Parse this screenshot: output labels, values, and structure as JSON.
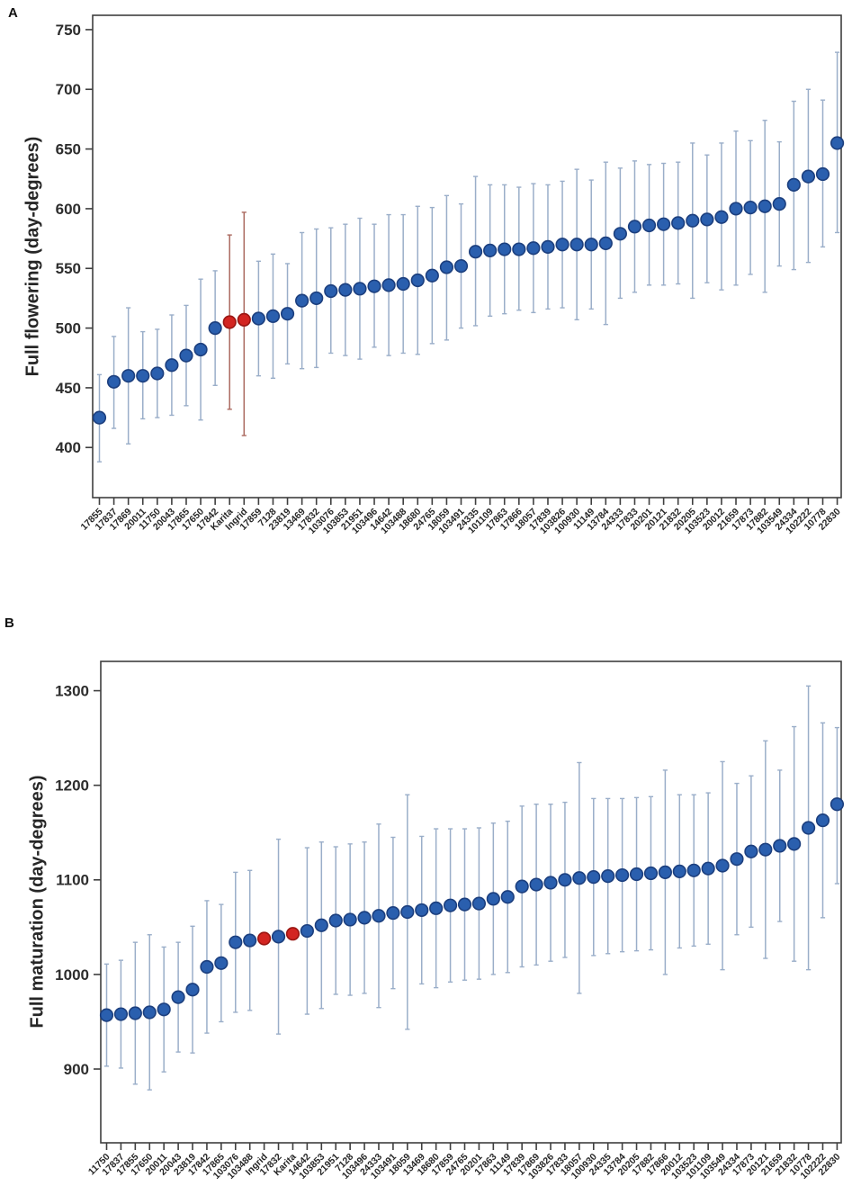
{
  "figure": {
    "panels": [
      {
        "letter": "A"
      },
      {
        "letter": "B"
      }
    ],
    "highlighted_labels": [
      "Karita",
      "Ingrid"
    ]
  },
  "colors": {
    "dot_blue": "#2a5fae",
    "dot_blue_edge": "#1c3f7e",
    "dot_red": "#d32521",
    "dot_red_edge": "#9a1612",
    "bar_blue": "#9aaec9",
    "bar_red": "#ab6a60",
    "axis": "#3f3f3f",
    "background": "#ffffff"
  },
  "chart_data": [
    {
      "type": "scatter",
      "panel": "A",
      "ylabel": "Full flowering (day-degrees)",
      "xlabel": "",
      "ylim": [
        358,
        762
      ],
      "yticks": [
        400,
        450,
        500,
        550,
        600,
        650,
        700,
        750
      ],
      "grid": false,
      "error_bars": true,
      "points": [
        {
          "label": "17855",
          "mean": 425,
          "lo": 388,
          "hi": 461,
          "highlight": false
        },
        {
          "label": "17837",
          "mean": 455,
          "lo": 416,
          "hi": 493,
          "highlight": false
        },
        {
          "label": "17869",
          "mean": 460,
          "lo": 403,
          "hi": 517,
          "highlight": false
        },
        {
          "label": "20011",
          "mean": 460,
          "lo": 424,
          "hi": 497,
          "highlight": false
        },
        {
          "label": "11750",
          "mean": 462,
          "lo": 425,
          "hi": 499,
          "highlight": false
        },
        {
          "label": "20043",
          "mean": 469,
          "lo": 427,
          "hi": 511,
          "highlight": false
        },
        {
          "label": "17865",
          "mean": 477,
          "lo": 435,
          "hi": 519,
          "highlight": false
        },
        {
          "label": "17650",
          "mean": 482,
          "lo": 423,
          "hi": 541,
          "highlight": false
        },
        {
          "label": "17842",
          "mean": 500,
          "lo": 452,
          "hi": 548,
          "highlight": false
        },
        {
          "label": "Karita",
          "mean": 505,
          "lo": 432,
          "hi": 578,
          "highlight": true
        },
        {
          "label": "Ingrid",
          "mean": 507,
          "lo": 410,
          "hi": 597,
          "highlight": true
        },
        {
          "label": "17859",
          "mean": 508,
          "lo": 460,
          "hi": 556,
          "highlight": false
        },
        {
          "label": "7128",
          "mean": 510,
          "lo": 458,
          "hi": 562,
          "highlight": false
        },
        {
          "label": "23819",
          "mean": 512,
          "lo": 470,
          "hi": 554,
          "highlight": false
        },
        {
          "label": "13469",
          "mean": 523,
          "lo": 466,
          "hi": 580,
          "highlight": false
        },
        {
          "label": "17832",
          "mean": 525,
          "lo": 467,
          "hi": 583,
          "highlight": false
        },
        {
          "label": "103076",
          "mean": 531,
          "lo": 479,
          "hi": 584,
          "highlight": false
        },
        {
          "label": "103853",
          "mean": 532,
          "lo": 477,
          "hi": 587,
          "highlight": false
        },
        {
          "label": "21951",
          "mean": 533,
          "lo": 474,
          "hi": 592,
          "highlight": false
        },
        {
          "label": "103496",
          "mean": 535,
          "lo": 484,
          "hi": 587,
          "highlight": false
        },
        {
          "label": "14642",
          "mean": 536,
          "lo": 477,
          "hi": 595,
          "highlight": false
        },
        {
          "label": "103488",
          "mean": 537,
          "lo": 479,
          "hi": 595,
          "highlight": false
        },
        {
          "label": "18680",
          "mean": 540,
          "lo": 478,
          "hi": 602,
          "highlight": false
        },
        {
          "label": "24765",
          "mean": 544,
          "lo": 487,
          "hi": 601,
          "highlight": false
        },
        {
          "label": "18059",
          "mean": 551,
          "lo": 490,
          "hi": 611,
          "highlight": false
        },
        {
          "label": "103491",
          "mean": 552,
          "lo": 500,
          "hi": 604,
          "highlight": false
        },
        {
          "label": "24335",
          "mean": 564,
          "lo": 502,
          "hi": 627,
          "highlight": false
        },
        {
          "label": "101109",
          "mean": 565,
          "lo": 510,
          "hi": 620,
          "highlight": false
        },
        {
          "label": "17863",
          "mean": 566,
          "lo": 512,
          "hi": 620,
          "highlight": false
        },
        {
          "label": "17866",
          "mean": 566,
          "lo": 515,
          "hi": 618,
          "highlight": false
        },
        {
          "label": "18057",
          "mean": 567,
          "lo": 513,
          "hi": 621,
          "highlight": false
        },
        {
          "label": "17839",
          "mean": 568,
          "lo": 516,
          "hi": 620,
          "highlight": false
        },
        {
          "label": "103826",
          "mean": 570,
          "lo": 517,
          "hi": 623,
          "highlight": false
        },
        {
          "label": "100930",
          "mean": 570,
          "lo": 507,
          "hi": 633,
          "highlight": false
        },
        {
          "label": "11149",
          "mean": 570,
          "lo": 516,
          "hi": 624,
          "highlight": false
        },
        {
          "label": "13784",
          "mean": 571,
          "lo": 503,
          "hi": 639,
          "highlight": false
        },
        {
          "label": "24333",
          "mean": 579,
          "lo": 525,
          "hi": 634,
          "highlight": false
        },
        {
          "label": "17833",
          "mean": 585,
          "lo": 530,
          "hi": 640,
          "highlight": false
        },
        {
          "label": "20201",
          "mean": 586,
          "lo": 536,
          "hi": 637,
          "highlight": false
        },
        {
          "label": "20121",
          "mean": 587,
          "lo": 536,
          "hi": 638,
          "highlight": false
        },
        {
          "label": "21832",
          "mean": 588,
          "lo": 537,
          "hi": 639,
          "highlight": false
        },
        {
          "label": "20205",
          "mean": 590,
          "lo": 525,
          "hi": 655,
          "highlight": false
        },
        {
          "label": "103523",
          "mean": 591,
          "lo": 538,
          "hi": 645,
          "highlight": false
        },
        {
          "label": "20012",
          "mean": 593,
          "lo": 532,
          "hi": 655,
          "highlight": false
        },
        {
          "label": "21659",
          "mean": 600,
          "lo": 536,
          "hi": 665,
          "highlight": false
        },
        {
          "label": "17873",
          "mean": 601,
          "lo": 545,
          "hi": 657,
          "highlight": false
        },
        {
          "label": "17882",
          "mean": 602,
          "lo": 530,
          "hi": 674,
          "highlight": false
        },
        {
          "label": "103549",
          "mean": 604,
          "lo": 552,
          "hi": 656,
          "highlight": false
        },
        {
          "label": "24334",
          "mean": 620,
          "lo": 549,
          "hi": 690,
          "highlight": false
        },
        {
          "label": "102222",
          "mean": 627,
          "lo": 555,
          "hi": 700,
          "highlight": false
        },
        {
          "label": "10778",
          "mean": 629,
          "lo": 568,
          "hi": 691,
          "highlight": false
        },
        {
          "label": "22830",
          "mean": 655,
          "lo": 580,
          "hi": 731,
          "highlight": false
        }
      ]
    },
    {
      "type": "scatter",
      "panel": "B",
      "ylabel": "Full maturation (day-degrees)",
      "xlabel": "",
      "ylim": [
        822,
        1331
      ],
      "yticks": [
        900,
        1000,
        1100,
        1200,
        1300
      ],
      "grid": false,
      "error_bars": true,
      "points": [
        {
          "label": "11750",
          "mean": 957,
          "lo": 903,
          "hi": 1011,
          "highlight": false
        },
        {
          "label": "17837",
          "mean": 958,
          "lo": 901,
          "hi": 1015,
          "highlight": false
        },
        {
          "label": "17855",
          "mean": 959,
          "lo": 884,
          "hi": 1034,
          "highlight": false
        },
        {
          "label": "17650",
          "mean": 960,
          "lo": 878,
          "hi": 1042,
          "highlight": false
        },
        {
          "label": "20011",
          "mean": 963,
          "lo": 897,
          "hi": 1029,
          "highlight": false
        },
        {
          "label": "20043",
          "mean": 976,
          "lo": 918,
          "hi": 1034,
          "highlight": false
        },
        {
          "label": "23819",
          "mean": 984,
          "lo": 917,
          "hi": 1051,
          "highlight": false
        },
        {
          "label": "17842",
          "mean": 1008,
          "lo": 938,
          "hi": 1078,
          "highlight": false
        },
        {
          "label": "17865",
          "mean": 1012,
          "lo": 950,
          "hi": 1074,
          "highlight": false
        },
        {
          "label": "103076",
          "mean": 1034,
          "lo": 960,
          "hi": 1108,
          "highlight": false
        },
        {
          "label": "103488",
          "mean": 1036,
          "lo": 962,
          "hi": 1110,
          "highlight": false
        },
        {
          "label": "Ingrid",
          "mean": 1038,
          "lo": null,
          "hi": null,
          "highlight": true
        },
        {
          "label": "17832",
          "mean": 1040,
          "lo": 937,
          "hi": 1143,
          "highlight": false
        },
        {
          "label": "Karita",
          "mean": 1043,
          "lo": null,
          "hi": null,
          "highlight": true
        },
        {
          "label": "14642",
          "mean": 1046,
          "lo": 958,
          "hi": 1134,
          "highlight": false
        },
        {
          "label": "103853",
          "mean": 1052,
          "lo": 964,
          "hi": 1140,
          "highlight": false
        },
        {
          "label": "21951",
          "mean": 1057,
          "lo": 979,
          "hi": 1135,
          "highlight": false
        },
        {
          "label": "7128",
          "mean": 1058,
          "lo": 978,
          "hi": 1138,
          "highlight": false
        },
        {
          "label": "103496",
          "mean": 1060,
          "lo": 980,
          "hi": 1140,
          "highlight": false
        },
        {
          "label": "24333",
          "mean": 1062,
          "lo": 965,
          "hi": 1159,
          "highlight": false
        },
        {
          "label": "103491",
          "mean": 1065,
          "lo": 985,
          "hi": 1145,
          "highlight": false
        },
        {
          "label": "18059",
          "mean": 1066,
          "lo": 942,
          "hi": 1190,
          "highlight": false
        },
        {
          "label": "13469",
          "mean": 1068,
          "lo": 990,
          "hi": 1146,
          "highlight": false
        },
        {
          "label": "18680",
          "mean": 1070,
          "lo": 986,
          "hi": 1154,
          "highlight": false
        },
        {
          "label": "17859",
          "mean": 1073,
          "lo": 992,
          "hi": 1154,
          "highlight": false
        },
        {
          "label": "24765",
          "mean": 1074,
          "lo": 994,
          "hi": 1154,
          "highlight": false
        },
        {
          "label": "20201",
          "mean": 1075,
          "lo": 995,
          "hi": 1155,
          "highlight": false
        },
        {
          "label": "17863",
          "mean": 1080,
          "lo": 1000,
          "hi": 1160,
          "highlight": false
        },
        {
          "label": "11149",
          "mean": 1082,
          "lo": 1002,
          "hi": 1162,
          "highlight": false
        },
        {
          "label": "17839",
          "mean": 1093,
          "lo": 1008,
          "hi": 1178,
          "highlight": false
        },
        {
          "label": "17869",
          "mean": 1095,
          "lo": 1010,
          "hi": 1180,
          "highlight": false
        },
        {
          "label": "103826",
          "mean": 1097,
          "lo": 1014,
          "hi": 1180,
          "highlight": false
        },
        {
          "label": "17833",
          "mean": 1100,
          "lo": 1018,
          "hi": 1182,
          "highlight": false
        },
        {
          "label": "18057",
          "mean": 1102,
          "lo": 980,
          "hi": 1224,
          "highlight": false
        },
        {
          "label": "100930",
          "mean": 1103,
          "lo": 1020,
          "hi": 1186,
          "highlight": false
        },
        {
          "label": "24335",
          "mean": 1104,
          "lo": 1022,
          "hi": 1186,
          "highlight": false
        },
        {
          "label": "13784",
          "mean": 1105,
          "lo": 1024,
          "hi": 1186,
          "highlight": false
        },
        {
          "label": "20205",
          "mean": 1106,
          "lo": 1025,
          "hi": 1187,
          "highlight": false
        },
        {
          "label": "17882",
          "mean": 1107,
          "lo": 1026,
          "hi": 1188,
          "highlight": false
        },
        {
          "label": "17866",
          "mean": 1108,
          "lo": 1000,
          "hi": 1216,
          "highlight": false
        },
        {
          "label": "20012",
          "mean": 1109,
          "lo": 1028,
          "hi": 1190,
          "highlight": false
        },
        {
          "label": "103523",
          "mean": 1110,
          "lo": 1030,
          "hi": 1190,
          "highlight": false
        },
        {
          "label": "101109",
          "mean": 1112,
          "lo": 1032,
          "hi": 1192,
          "highlight": false
        },
        {
          "label": "103549",
          "mean": 1115,
          "lo": 1005,
          "hi": 1225,
          "highlight": false
        },
        {
          "label": "24334",
          "mean": 1122,
          "lo": 1042,
          "hi": 1202,
          "highlight": false
        },
        {
          "label": "17873",
          "mean": 1130,
          "lo": 1050,
          "hi": 1210,
          "highlight": false
        },
        {
          "label": "20121",
          "mean": 1132,
          "lo": 1017,
          "hi": 1247,
          "highlight": false
        },
        {
          "label": "21659",
          "mean": 1136,
          "lo": 1056,
          "hi": 1216,
          "highlight": false
        },
        {
          "label": "21832",
          "mean": 1138,
          "lo": 1014,
          "hi": 1262,
          "highlight": false
        },
        {
          "label": "10778",
          "mean": 1155,
          "lo": 1005,
          "hi": 1305,
          "highlight": false
        },
        {
          "label": "102222",
          "mean": 1163,
          "lo": 1060,
          "hi": 1266,
          "highlight": false
        },
        {
          "label": "22830",
          "mean": 1180,
          "lo": 1096,
          "hi": 1261,
          "highlight": false
        }
      ]
    }
  ]
}
